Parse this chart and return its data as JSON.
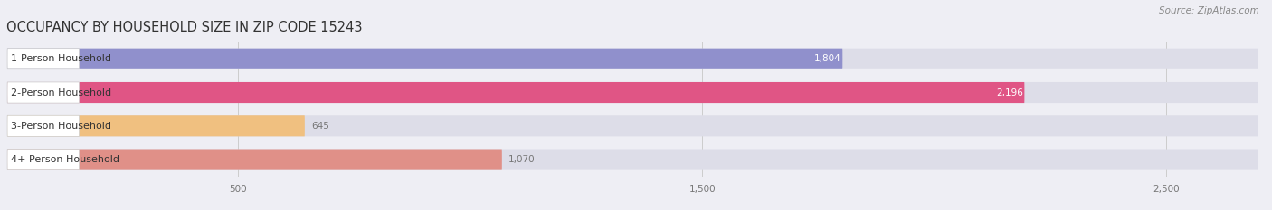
{
  "title": "OCCUPANCY BY HOUSEHOLD SIZE IN ZIP CODE 15243",
  "source": "Source: ZipAtlas.com",
  "categories": [
    "1-Person Household",
    "2-Person Household",
    "3-Person Household",
    "4+ Person Household"
  ],
  "values": [
    1804,
    2196,
    645,
    1070
  ],
  "bar_colors": [
    "#9090cc",
    "#e05585",
    "#f0c080",
    "#e09088"
  ],
  "label_colors": [
    "white",
    "white",
    "#777777",
    "#777777"
  ],
  "background_color": "#eeeef4",
  "bar_bg_color": "#dddde8",
  "xlim": [
    0,
    2700
  ],
  "xticks": [
    500,
    1500,
    2500
  ],
  "tick_labels": [
    "500",
    "1,500",
    "2,500"
  ],
  "bar_height": 0.62,
  "title_fontsize": 10.5,
  "label_fontsize": 8,
  "value_fontsize": 7.5,
  "source_fontsize": 7.5
}
